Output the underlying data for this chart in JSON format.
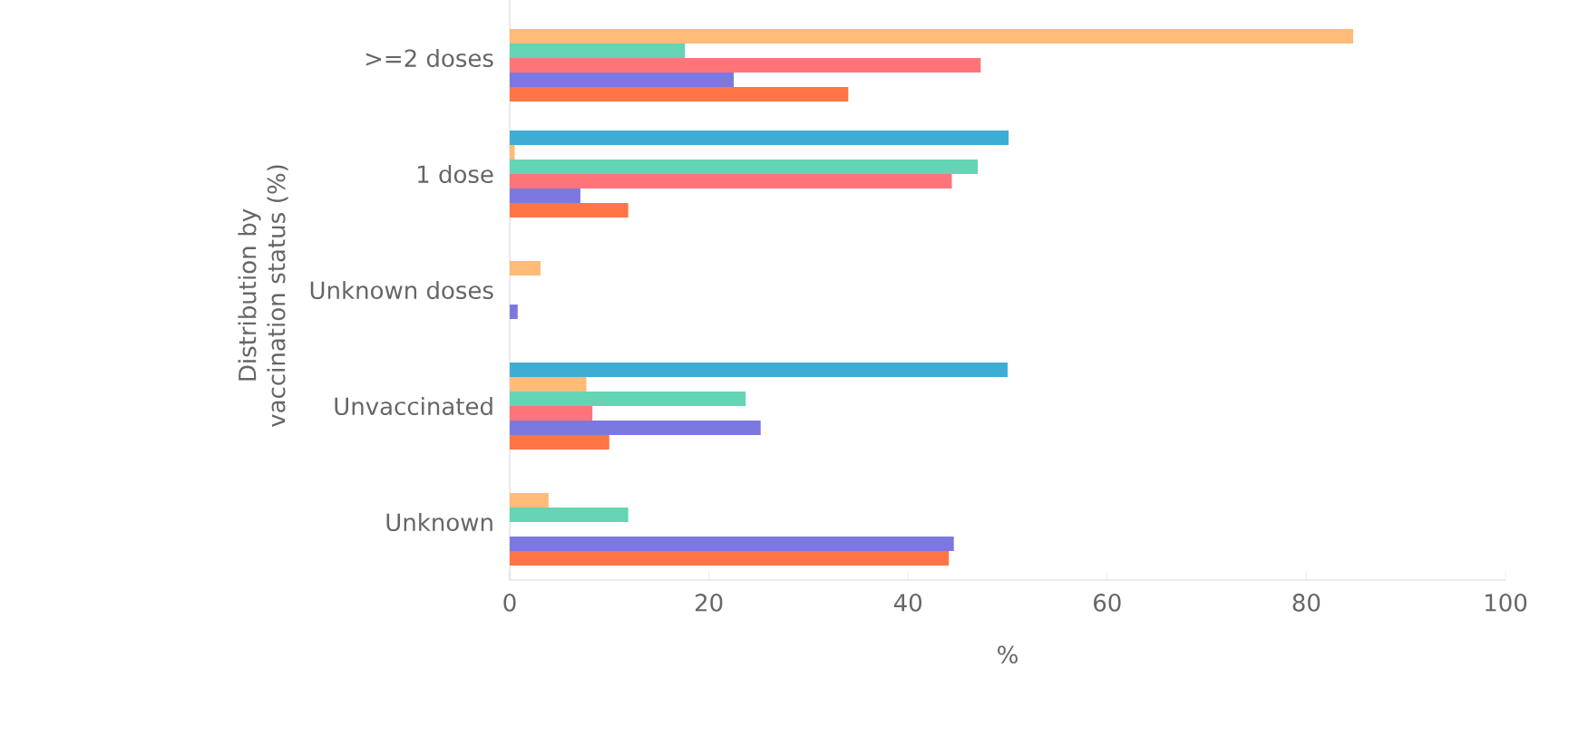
{
  "chart_data": {
    "type": "bar",
    "orientation": "horizontal",
    "ylabel": "Distribution by vaccination status (%)",
    "xlabel": "%",
    "categories": [
      ">=2 doses",
      "1 dose",
      "Unknown doses",
      "Unvaccinated",
      "Unknown"
    ],
    "xlim": [
      0,
      100
    ],
    "xticks": [
      0,
      20,
      40,
      60,
      80,
      100
    ],
    "grid": false,
    "series": [
      {
        "color": "#3eadd4",
        "values": [
          null,
          50.1,
          null,
          50.0,
          null
        ]
      },
      {
        "color": "#ffbb78",
        "values": [
          84.7,
          0.5,
          3.1,
          7.7,
          3.9
        ]
      },
      {
        "color": "#64d4b4",
        "values": [
          17.6,
          47.0,
          null,
          23.7,
          11.9
        ]
      },
      {
        "color": "#ff7479",
        "values": [
          47.3,
          44.4,
          null,
          8.3,
          null
        ]
      },
      {
        "color": "#7b79e0",
        "values": [
          22.5,
          7.1,
          0.8,
          25.2,
          44.6
        ]
      },
      {
        "color": "#ff7545",
        "values": [
          34.0,
          11.9,
          null,
          10.0,
          44.1
        ]
      }
    ]
  }
}
